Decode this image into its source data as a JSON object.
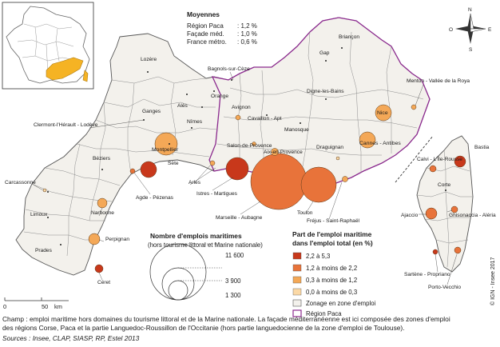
{
  "averages": {
    "title": "Moyennes",
    "rows": [
      {
        "label": "Région Paca",
        "value": ": 1,2 %"
      },
      {
        "label": "Façade méd.",
        "value": ": 1,0 %"
      },
      {
        "label": "France métro.",
        "value": ": 0,6 %"
      }
    ]
  },
  "size_legend": {
    "title": "Nombre d'emplois maritimes",
    "subtitle": "(hors tourisme littoral et Marine nationale)",
    "values": [
      "11 600",
      "3 900",
      "1 300"
    ]
  },
  "color_legend": {
    "title_line1": "Part de l'emploi maritime",
    "title_line2": "dans l'emploi total (en %)",
    "classes": [
      {
        "label": "2,2 à 5,3",
        "color": "#c8381b"
      },
      {
        "label": "1,2 à moins de 2,2",
        "color": "#e8733a"
      },
      {
        "label": "0,3 à moins de 1,2",
        "color": "#f4a857"
      },
      {
        "label": "0,0 à moins de 0,3",
        "color": "#fbd9a6"
      }
    ],
    "zone_label": "Zonage en zone d'emploi",
    "region_label": "Région Paca",
    "region_color": "#8b2a8e"
  },
  "scale": {
    "zero": "0",
    "distance": "50",
    "unit": "km"
  },
  "compass": {
    "n": "N",
    "s": "S",
    "e": "E",
    "o": "O"
  },
  "copyright": "© IGN - Insee 2017",
  "caption_line1": "Champ : emploi maritime hors domaines du tourisme littoral et de la Marine nationale. La façade méditerranéenne est ici composée des zones d'emploi",
  "caption_line2": "des régions Corse, Paca et la partie Languedoc-Roussillon de l'Occitanie (hors partie languedocienne de la zone d'emploi de Toulouse).",
  "source": "Sources : Insee, CLAP, SIASP, RP, Estel 2013",
  "zones": {
    "lozere": "Lozère",
    "bagnols": "Bagnols-sur-Cèze",
    "briancon": "Briançon",
    "gap": "Gap",
    "alès": "Alès",
    "orange": "Orange",
    "ganges": "Ganges",
    "avignon": "Avignon",
    "digne": "Digne-les-Bains",
    "menton": "Menton - Vallée de la Roya",
    "nimes": "Nîmes",
    "cavaillon": "Cavaillon - Apt",
    "clermont": "Clermont-l'Hérault - Lodève",
    "manosque": "Manosque",
    "nice": "Nice",
    "salon": "Salon-de-Provence",
    "aix": "Aix-en-Provence",
    "draguignan": "Draguignan",
    "cannes": "Cannes - Antibes",
    "montpellier": "Montpellier",
    "beziers": "Béziers",
    "sete": "Sète",
    "bastia": "Bastia",
    "calvi": "Calvi - L'Île-Rousse",
    "arles": "Arles",
    "istres": "Istres - Martigues",
    "carcassonne": "Carcassonne",
    "agde": "Agde - Pézenas",
    "corte": "Corte",
    "toulon": "Toulon",
    "marseille": "Marseille - Aubagne",
    "frejus": "Fréjus - Saint-Raphaël",
    "ajaccio": "Ajaccio",
    "ghisonaccia": "Ghisonaccia - Aléria",
    "limoux": "Limoux",
    "narbonne": "Narbonne",
    "perpignan": "Perpignan",
    "prades": "Prades",
    "sartene": "Sartène - Propriano",
    "porto_vecchio": "Porto-Vecchio",
    "ceret": "Céret"
  }
}
